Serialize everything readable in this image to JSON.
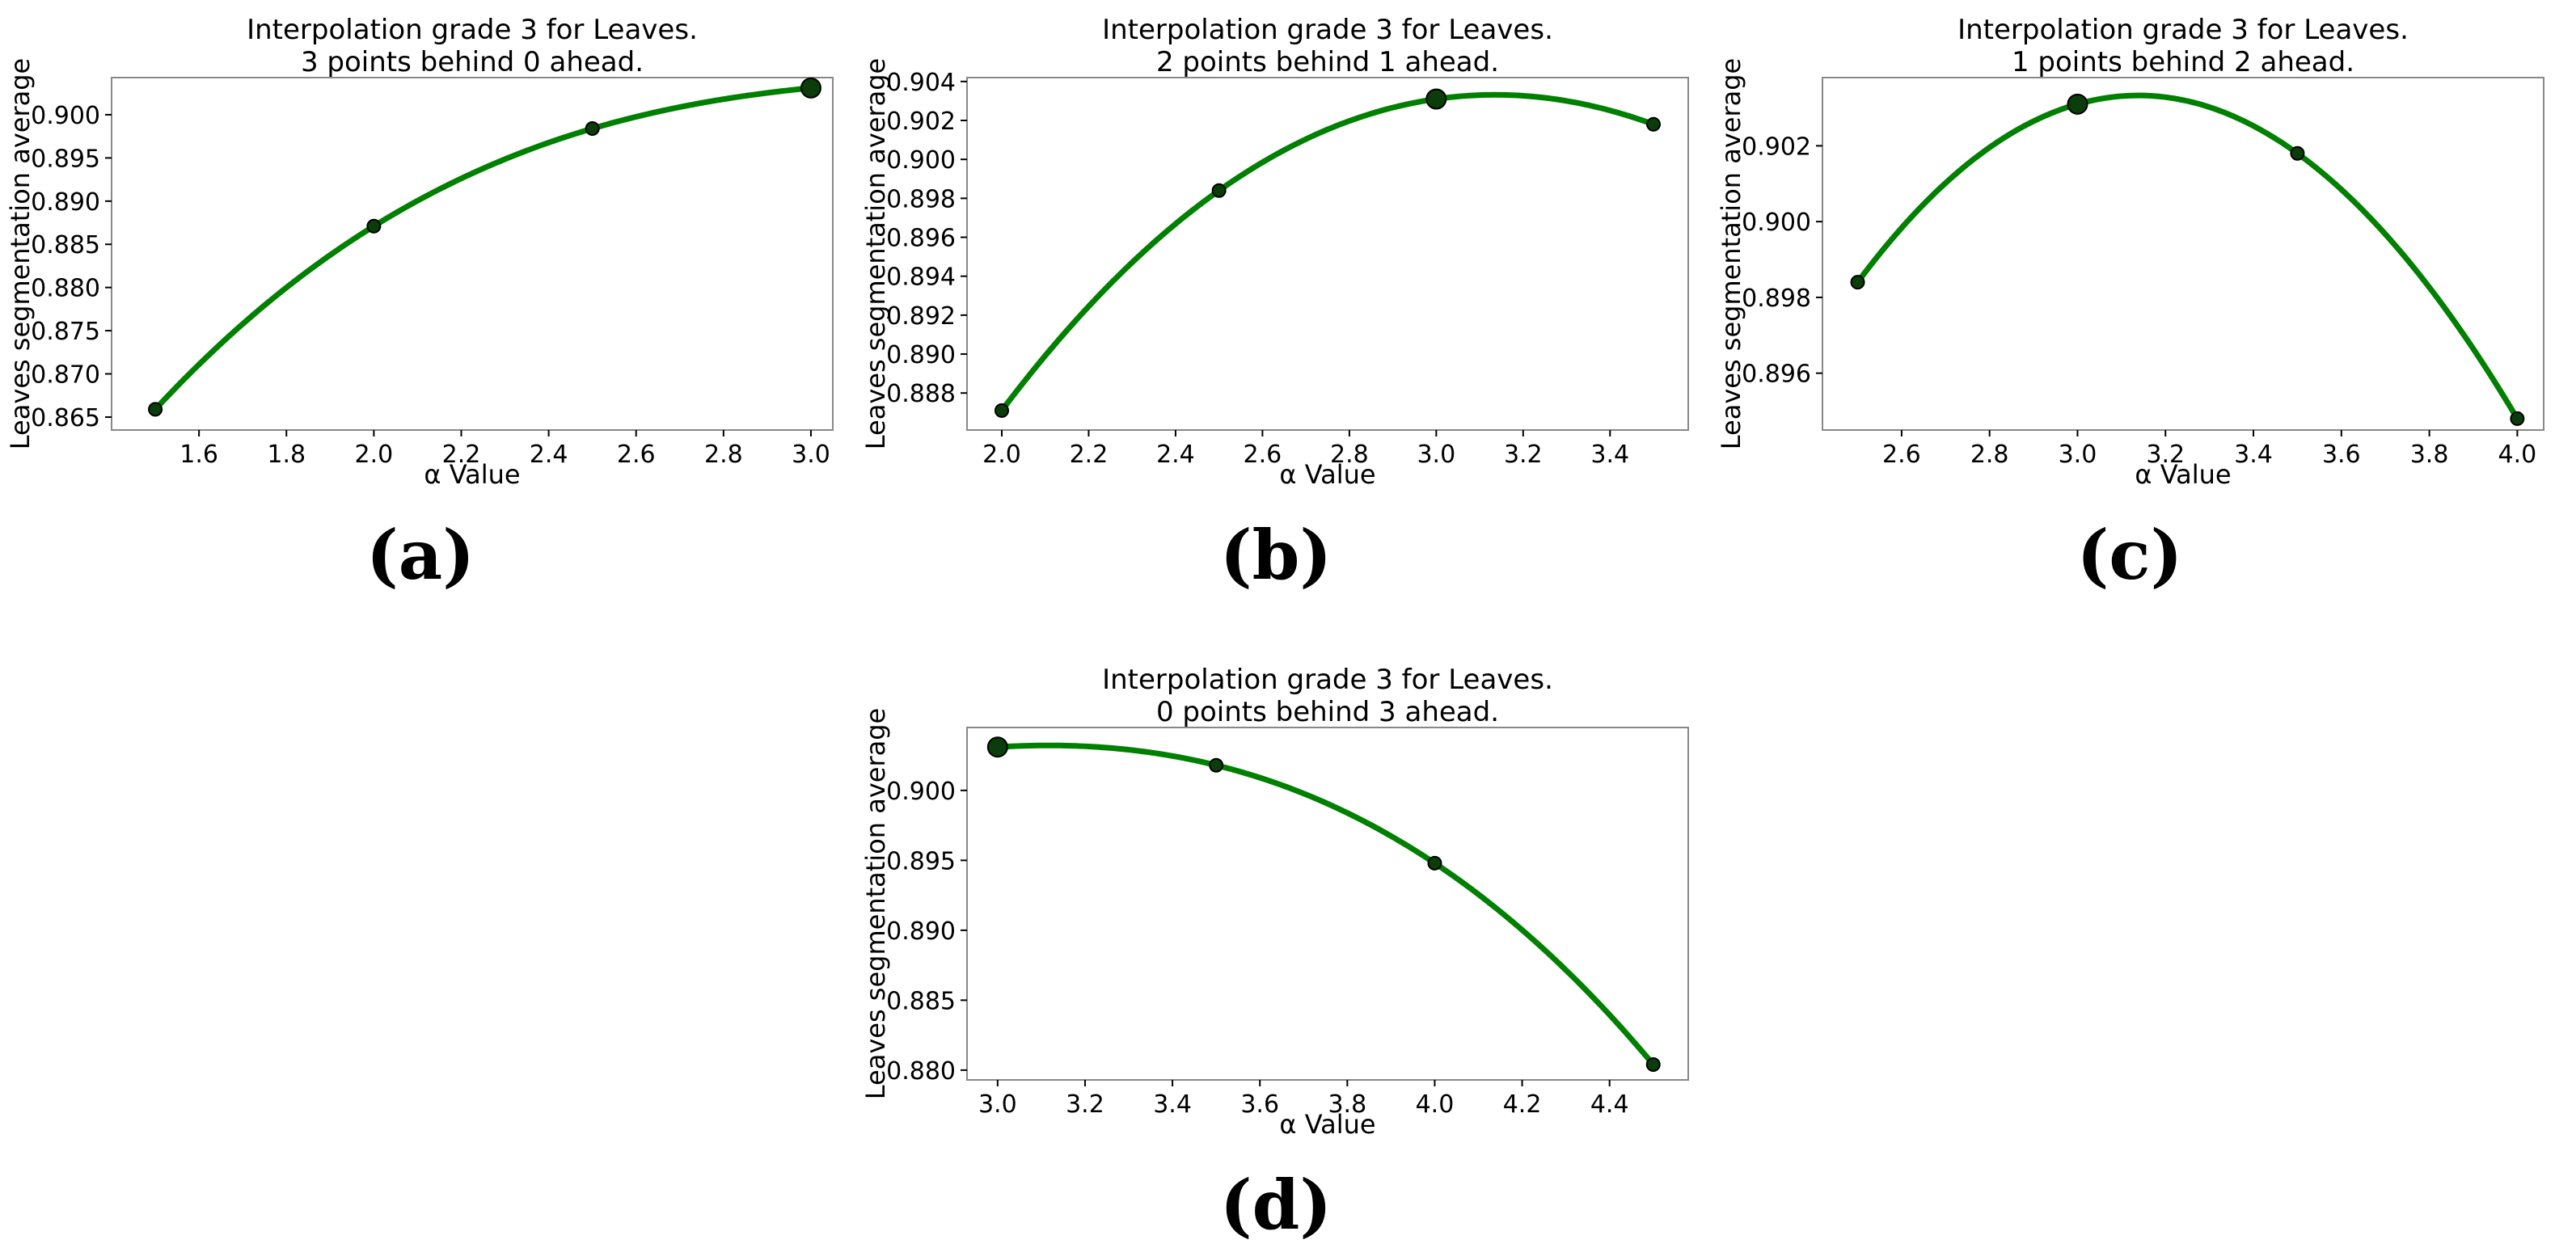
{
  "colors": {
    "curve": "#008000",
    "point": "#0b3d0b",
    "frame": "#888888"
  },
  "chart_data": [
    {
      "type": "line",
      "title": "Interpolation grade 3 for Leaves.",
      "subtitle": "3 points behind 0 ahead.",
      "xlabel": "α Value",
      "ylabel": "Leaves segmentation average",
      "caption": "(a)",
      "points": [
        {
          "x": 1.5,
          "y": 0.8659
        },
        {
          "x": 2.0,
          "y": 0.8871
        },
        {
          "x": 2.5,
          "y": 0.8984
        },
        {
          "x": 3.0,
          "y": 0.9031
        }
      ],
      "highlight_x": 3.0,
      "xlim": [
        1.4,
        3.05
      ],
      "ylim": [
        0.8635,
        0.9043
      ],
      "xticks": [
        1.6,
        1.8,
        2.0,
        2.2,
        2.4,
        2.6,
        2.8,
        3.0
      ],
      "yticks": [
        0.865,
        0.87,
        0.875,
        0.88,
        0.885,
        0.89,
        0.895,
        0.9
      ],
      "xtick_labels": [
        "1.6",
        "1.8",
        "2.0",
        "2.2",
        "2.4",
        "2.6",
        "2.8",
        "3.0"
      ],
      "ytick_labels": [
        "0.865",
        "0.870",
        "0.875",
        "0.880",
        "0.885",
        "0.890",
        "0.895",
        "0.900"
      ],
      "grid": false
    },
    {
      "type": "line",
      "title": "Interpolation grade 3 for Leaves.",
      "subtitle": "2 points behind 1 ahead.",
      "xlabel": "α Value",
      "ylabel": "Leaves segmentation average",
      "caption": "(b)",
      "points": [
        {
          "x": 2.0,
          "y": 0.8871
        },
        {
          "x": 2.5,
          "y": 0.8984
        },
        {
          "x": 3.0,
          "y": 0.9031
        },
        {
          "x": 3.5,
          "y": 0.9018
        }
      ],
      "highlight_x": 3.0,
      "xlim": [
        1.92,
        3.58
      ],
      "ylim": [
        0.8861,
        0.9042
      ],
      "xticks": [
        2.0,
        2.2,
        2.4,
        2.6,
        2.8,
        3.0,
        3.2,
        3.4
      ],
      "yticks": [
        0.888,
        0.89,
        0.892,
        0.894,
        0.896,
        0.898,
        0.9,
        0.902,
        0.904
      ],
      "xtick_labels": [
        "2.0",
        "2.2",
        "2.4",
        "2.6",
        "2.8",
        "3.0",
        "3.2",
        "3.4"
      ],
      "ytick_labels": [
        "0.888",
        "0.890",
        "0.892",
        "0.894",
        "0.896",
        "0.898",
        "0.900",
        "0.902",
        "0.904"
      ],
      "grid": false
    },
    {
      "type": "line",
      "title": "Interpolation grade 3 for Leaves.",
      "subtitle": "1 points behind 2 ahead.",
      "xlabel": "α Value",
      "ylabel": "Leaves segmentation average",
      "caption": "(c)",
      "points": [
        {
          "x": 2.5,
          "y": 0.8984
        },
        {
          "x": 3.0,
          "y": 0.9031
        },
        {
          "x": 3.5,
          "y": 0.9018
        },
        {
          "x": 4.0,
          "y": 0.8948
        }
      ],
      "highlight_x": 3.0,
      "xlim": [
        2.42,
        4.06
      ],
      "ylim": [
        0.8945,
        0.9038
      ],
      "xticks": [
        2.6,
        2.8,
        3.0,
        3.2,
        3.4,
        3.6,
        3.8,
        4.0
      ],
      "yticks": [
        0.896,
        0.898,
        0.9,
        0.902
      ],
      "xtick_labels": [
        "2.6",
        "2.8",
        "3.0",
        "3.2",
        "3.4",
        "3.6",
        "3.8",
        "4.0"
      ],
      "ytick_labels": [
        "0.896",
        "0.898",
        "0.900",
        "0.902"
      ],
      "grid": false
    },
    {
      "type": "line",
      "title": "Interpolation grade 3 for Leaves.",
      "subtitle": "0 points behind 3 ahead.",
      "xlabel": "α Value",
      "ylabel": "Leaves segmentation average",
      "caption": "(d)",
      "points": [
        {
          "x": 3.0,
          "y": 0.9031
        },
        {
          "x": 3.5,
          "y": 0.9018
        },
        {
          "x": 4.0,
          "y": 0.8948
        },
        {
          "x": 4.5,
          "y": 0.8804
        }
      ],
      "highlight_x": 3.0,
      "xlim": [
        2.93,
        4.58
      ],
      "ylim": [
        0.8793,
        0.9045
      ],
      "xticks": [
        3.0,
        3.2,
        3.4,
        3.6,
        3.8,
        4.0,
        4.2,
        4.4
      ],
      "yticks": [
        0.88,
        0.885,
        0.89,
        0.895,
        0.9
      ],
      "xtick_labels": [
        "3.0",
        "3.2",
        "3.4",
        "3.6",
        "3.8",
        "4.0",
        "4.2",
        "4.4"
      ],
      "ytick_labels": [
        "0.880",
        "0.885",
        "0.890",
        "0.895",
        "0.900"
      ],
      "grid": false
    }
  ]
}
